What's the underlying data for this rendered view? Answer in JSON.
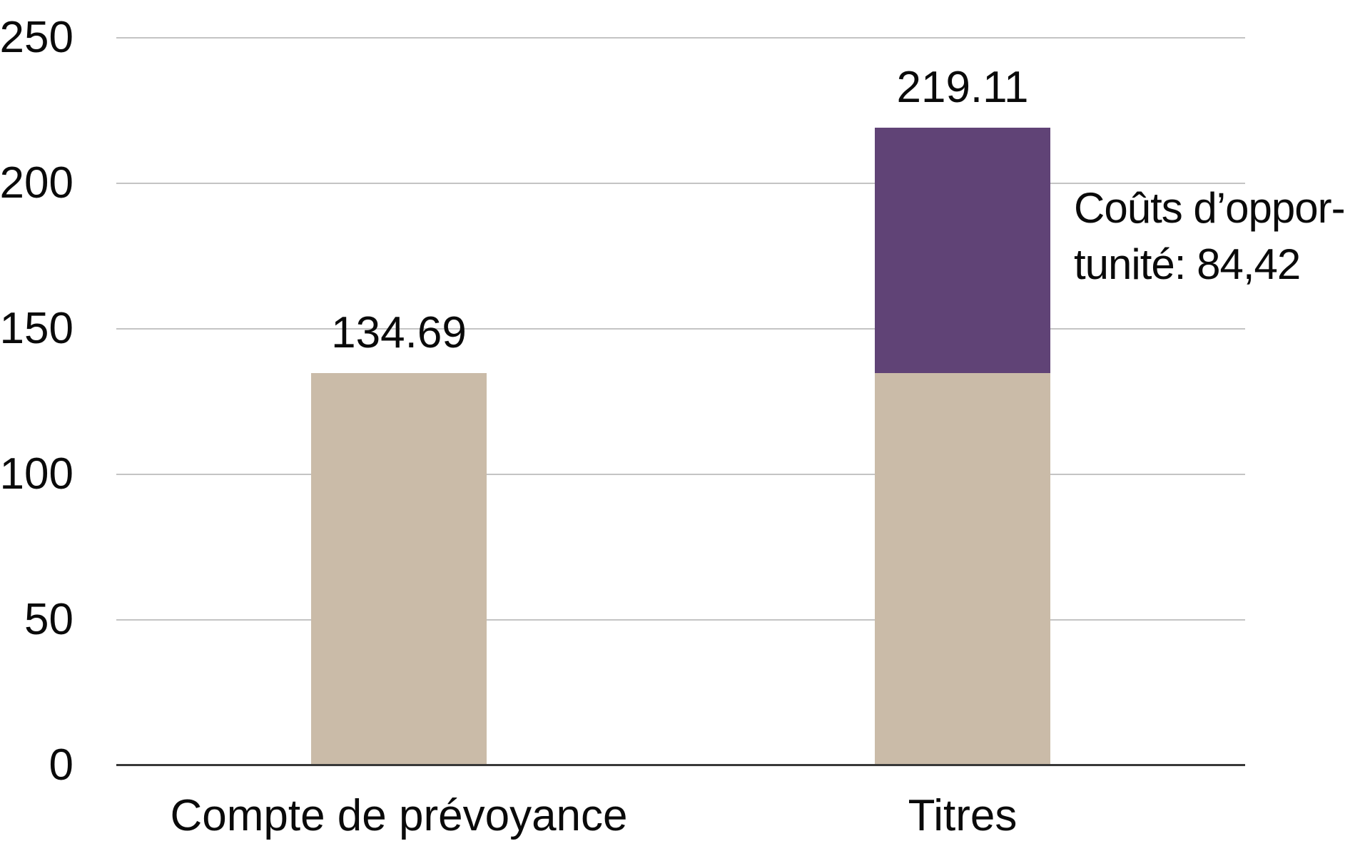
{
  "chart_data": {
    "type": "bar",
    "stacked": true,
    "title": "",
    "xlabel": "",
    "ylabel": "",
    "categories": [
      "Compte de prévoyance",
      "Titres"
    ],
    "series": [
      {
        "name": "valeur-de-base",
        "color": "#CABBA8",
        "values": [
          134.69,
          134.69
        ]
      },
      {
        "name": "couts-d-opportunite",
        "color": "#604376",
        "values": [
          0,
          84.42
        ]
      }
    ],
    "totals": [
      134.69,
      219.11
    ],
    "bar_value_labels": [
      "134.69",
      "219.11"
    ],
    "y_ticks": [
      0,
      50,
      100,
      150,
      200,
      250
    ],
    "ylim": [
      0,
      250
    ],
    "grid": true,
    "legend": "none",
    "annotation": {
      "lines": [
        "Coûts d’oppor-",
        "tunité: 84,42"
      ],
      "value": "84,42"
    },
    "colors": {
      "bar_base": "#CABBA8",
      "bar_opportunity": "#604376",
      "gridline": "#C4C4C4",
      "axis": "#383838",
      "text": "#0a0a0a"
    }
  }
}
